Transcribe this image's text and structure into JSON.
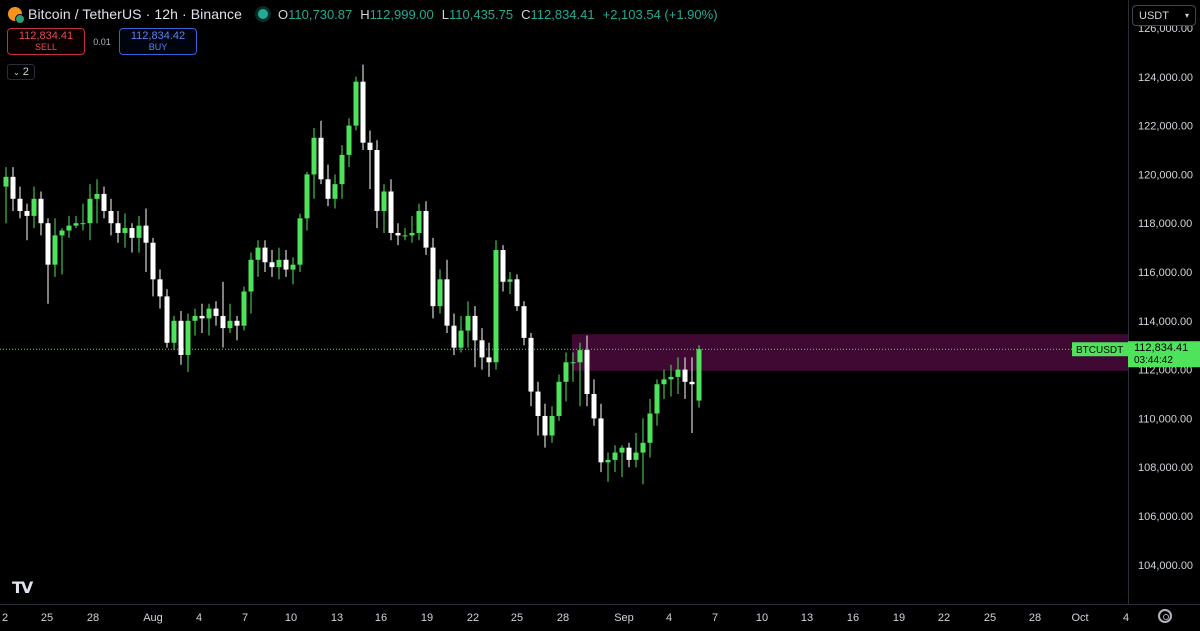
{
  "header": {
    "symbol_title": "Bitcoin / TetherUS · 12h · Binance",
    "open": "110,730.87",
    "high": "112,999.00",
    "low": "110,435.75",
    "close": "112,834.41",
    "change": "+2,103.54 (+1.90%)",
    "open_label": "O",
    "high_label": "H",
    "low_label": "L",
    "close_label": "C"
  },
  "trade": {
    "sell_price": "112,834.41",
    "sell_label": "SELL",
    "spread": "0.01",
    "buy_price": "112,834.42",
    "buy_label": "BUY"
  },
  "indicators_toggle": {
    "count": "2",
    "icon": "chevron-down-icon"
  },
  "currency_select": {
    "value": "USDT",
    "icon": "chevron-down-icon"
  },
  "price_tag": {
    "symbol": "BTCUSDT",
    "price": "112,834.41",
    "countdown": "03:44:42"
  },
  "colors": {
    "background": "#000000",
    "up": "#4fe35c",
    "down": "#ffffff",
    "zone": "#4a0a3c",
    "price_line": "#4fe35c"
  },
  "chart_data": {
    "type": "candlestick",
    "y_ticks": [
      "126,000.00",
      "124,000.00",
      "122,000.00",
      "120,000.00",
      "118,000.00",
      "116,000.00",
      "114,000.00",
      "112,000.00",
      "110,000.00",
      "108,000.00",
      "106,000.00",
      "104,000.00"
    ],
    "y_tick_values": [
      126000,
      124000,
      122000,
      120000,
      118000,
      116000,
      114000,
      112000,
      110000,
      108000,
      106000,
      104000
    ],
    "x_ticks": [
      "2",
      "25",
      "28",
      "Aug",
      "4",
      "7",
      "10",
      "13",
      "16",
      "19",
      "22",
      "25",
      "28",
      "Sep",
      "4",
      "7",
      "10",
      "13",
      "16",
      "19",
      "22",
      "25",
      "28",
      "Oct",
      "4"
    ],
    "resistance_zone": [
      111950,
      113450
    ],
    "last_price": 112834.41,
    "candles": [
      [
        119500,
        120300,
        118000,
        119900
      ],
      [
        119900,
        120300,
        118500,
        119000
      ],
      [
        119000,
        119500,
        118200,
        118500
      ],
      [
        118500,
        118800,
        117300,
        118300
      ],
      [
        118300,
        119500,
        117800,
        119000
      ],
      [
        119000,
        119300,
        117500,
        118000
      ],
      [
        118000,
        118200,
        114700,
        116300
      ],
      [
        116300,
        118200,
        115800,
        117500
      ],
      [
        117500,
        117800,
        115900,
        117700
      ],
      [
        117700,
        118300,
        117400,
        117900
      ],
      [
        117900,
        118300,
        117800,
        118000
      ],
      [
        118000,
        118800,
        117700,
        118000
      ],
      [
        118000,
        119600,
        117300,
        119000
      ],
      [
        119000,
        119800,
        118000,
        119200
      ],
      [
        119200,
        119500,
        118200,
        118500
      ],
      [
        118500,
        119000,
        117500,
        118000
      ],
      [
        118000,
        118500,
        117200,
        117600
      ],
      [
        117600,
        118400,
        117000,
        117800
      ],
      [
        117800,
        118000,
        116800,
        117400
      ],
      [
        117400,
        118300,
        116800,
        117900
      ],
      [
        117900,
        118600,
        116000,
        117200
      ],
      [
        117200,
        117400,
        115000,
        115700
      ],
      [
        115700,
        116100,
        114500,
        115000
      ],
      [
        115000,
        115300,
        112900,
        113100
      ],
      [
        113100,
        114200,
        112800,
        114000
      ],
      [
        114000,
        114400,
        112200,
        112600
      ],
      [
        112600,
        114300,
        111900,
        114000
      ],
      [
        114000,
        114500,
        113400,
        114200
      ],
      [
        114200,
        114700,
        113500,
        114100
      ],
      [
        114100,
        114700,
        113400,
        114500
      ],
      [
        114500,
        114800,
        113800,
        114200
      ],
      [
        114200,
        115600,
        112900,
        113700
      ],
      [
        113700,
        114700,
        113500,
        114000
      ],
      [
        114000,
        114200,
        113200,
        113800
      ],
      [
        113800,
        115400,
        113600,
        115200
      ],
      [
        115200,
        116800,
        114300,
        116500
      ],
      [
        116500,
        117300,
        115800,
        117000
      ],
      [
        117000,
        117300,
        116000,
        116400
      ],
      [
        116400,
        116900,
        115800,
        116200
      ],
      [
        116200,
        117000,
        115700,
        116500
      ],
      [
        116500,
        116900,
        115800,
        116100
      ],
      [
        116100,
        116600,
        115500,
        116300
      ],
      [
        116300,
        118400,
        116000,
        118200
      ],
      [
        118200,
        120100,
        117700,
        120000
      ],
      [
        120000,
        121900,
        119000,
        121500
      ],
      [
        121500,
        122200,
        119600,
        119800
      ],
      [
        119800,
        120400,
        118700,
        119000
      ],
      [
        119000,
        120000,
        118600,
        119600
      ],
      [
        119600,
        121200,
        119000,
        120800
      ],
      [
        120800,
        122300,
        120300,
        122000
      ],
      [
        122000,
        124000,
        121800,
        123800
      ],
      [
        123800,
        124500,
        121000,
        121300
      ],
      [
        121300,
        121800,
        119400,
        121000
      ],
      [
        121000,
        121400,
        117800,
        118500
      ],
      [
        118500,
        119600,
        117600,
        119300
      ],
      [
        119300,
        119800,
        117300,
        117600
      ],
      [
        117600,
        118000,
        117100,
        117500
      ],
      [
        117500,
        117800,
        117300,
        117500
      ],
      [
        117500,
        118300,
        117200,
        117600
      ],
      [
        117600,
        118800,
        117300,
        118500
      ],
      [
        118500,
        118900,
        116700,
        117000
      ],
      [
        117000,
        117400,
        114100,
        114600
      ],
      [
        114600,
        116100,
        114300,
        115700
      ],
      [
        115700,
        116500,
        113500,
        113800
      ],
      [
        113800,
        114300,
        112600,
        112900
      ],
      [
        112900,
        114200,
        112700,
        113600
      ],
      [
        113600,
        114800,
        112900,
        114200
      ],
      [
        114200,
        114600,
        112100,
        113200
      ],
      [
        113200,
        113700,
        112000,
        112500
      ],
      [
        112500,
        113100,
        111700,
        112300
      ],
      [
        112300,
        117300,
        112000,
        116900
      ],
      [
        116900,
        117100,
        115200,
        115600
      ],
      [
        115600,
        116000,
        115100,
        115700
      ],
      [
        115700,
        115900,
        114400,
        114600
      ],
      [
        114600,
        114800,
        113000,
        113300
      ],
      [
        113300,
        113500,
        110500,
        111100
      ],
      [
        111100,
        111500,
        109300,
        110100
      ],
      [
        110100,
        110600,
        108800,
        109300
      ],
      [
        109300,
        110500,
        109000,
        110100
      ],
      [
        110100,
        111800,
        109900,
        111500
      ],
      [
        111500,
        112700,
        110700,
        112300
      ],
      [
        112300,
        112700,
        111500,
        112300
      ],
      [
        112300,
        113100,
        110500,
        112800
      ],
      [
        112800,
        113400,
        110500,
        111000
      ],
      [
        111000,
        111600,
        109700,
        110000
      ],
      [
        110000,
        110600,
        107800,
        108200
      ],
      [
        108200,
        108600,
        107400,
        108300
      ],
      [
        108300,
        108900,
        107800,
        108600
      ],
      [
        108600,
        108900,
        107600,
        108800
      ],
      [
        108800,
        109000,
        108000,
        108300
      ],
      [
        108300,
        109400,
        108000,
        108600
      ],
      [
        108600,
        110000,
        107300,
        109000
      ],
      [
        109000,
        110800,
        108400,
        110200
      ],
      [
        110200,
        111600,
        109700,
        111400
      ],
      [
        111400,
        112000,
        110800,
        111600
      ],
      [
        111600,
        112200,
        110900,
        111700
      ],
      [
        111700,
        112500,
        111000,
        112000
      ],
      [
        112000,
        112500,
        110800,
        111500
      ],
      [
        111500,
        112500,
        109400,
        111400
      ],
      [
        110730.87,
        112999,
        110435.75,
        112834.41
      ]
    ]
  },
  "watermark": "TV"
}
